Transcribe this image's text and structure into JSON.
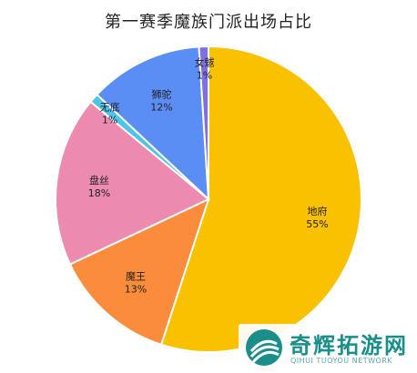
{
  "chart_data": {
    "type": "pie",
    "title": "第一赛季魔族门派出场占比",
    "slices": [
      {
        "name": "地府",
        "value": 55,
        "label": "55%",
        "color": "#f9c100"
      },
      {
        "name": "魔王",
        "value": 13,
        "label": "13%",
        "color": "#fb8c3c"
      },
      {
        "name": "盘丝",
        "value": 18,
        "label": "18%",
        "color": "#ec8ab0"
      },
      {
        "name": "无底",
        "value": 1,
        "label": "1%",
        "color": "#4fc3e8"
      },
      {
        "name": "狮驼",
        "value": 12,
        "label": "12%",
        "color": "#5b8ef5"
      },
      {
        "name": "女魃",
        "value": 1,
        "label": "1%",
        "color": "#7f6fe0"
      }
    ]
  },
  "watermark": {
    "name": "奇辉拓游网",
    "subtitle": "QIHUI TUOYOU NETWORK"
  }
}
